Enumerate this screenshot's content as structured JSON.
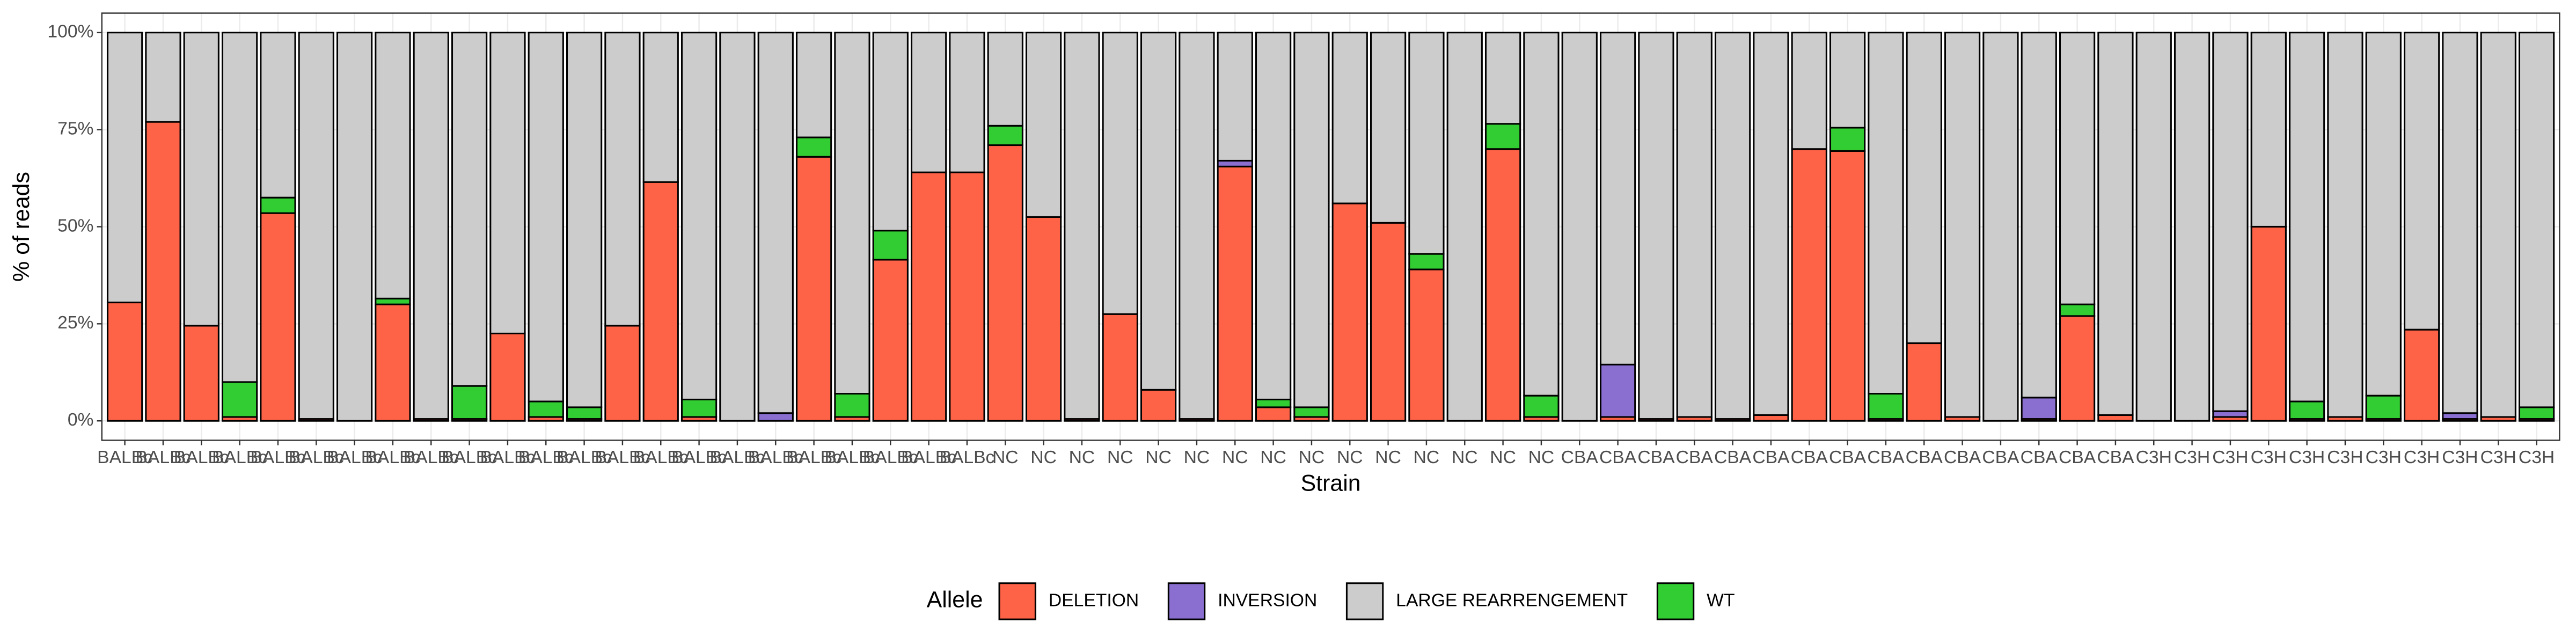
{
  "chart_data": {
    "type": "stacked_bar",
    "x_label": "Strain",
    "y_label": "% of reads",
    "legend_title": "Allele",
    "categories": [
      "BALBc",
      "BALBc",
      "BALBc",
      "BALBc",
      "BALBc",
      "BALBc",
      "BALBc",
      "BALBc",
      "BALBc",
      "BALBc",
      "BALBc",
      "BALBc",
      "BALBc",
      "BALBc",
      "BALBc",
      "BALBc",
      "BALBc",
      "BALBc",
      "BALBc",
      "BALBc",
      "BALBc",
      "BALBc",
      "BALBc",
      "NC",
      "NC",
      "NC",
      "NC",
      "NC",
      "NC",
      "NC",
      "NC",
      "NC",
      "NC",
      "NC",
      "NC",
      "NC",
      "NC",
      "NC",
      "CBA",
      "CBA",
      "CBA",
      "CBA",
      "CBA",
      "CBA",
      "CBA",
      "CBA",
      "CBA",
      "CBA",
      "CBA",
      "CBA",
      "CBA",
      "CBA",
      "CBA",
      "C3H",
      "C3H",
      "C3H",
      "C3H",
      "C3H",
      "C3H",
      "C3H",
      "C3H",
      "C3H",
      "C3H",
      "C3H"
    ],
    "series": [
      {
        "name": "DELETION",
        "color": "#ff6347",
        "values": [
          30.5,
          77,
          24.5,
          1,
          53.5,
          0.5,
          0,
          30,
          0.5,
          0.5,
          22.5,
          1,
          0.5,
          24.5,
          61.5,
          1,
          0,
          0,
          68,
          1,
          41.5,
          64,
          64,
          71,
          52.5,
          0.5,
          27.5,
          8,
          0.5,
          65.5,
          3.5,
          1,
          56,
          51,
          39,
          0,
          70,
          1,
          0,
          1,
          0.5,
          1,
          0.5,
          1.5,
          70,
          69.5,
          0.5,
          20,
          1,
          0,
          0.5,
          27,
          1.5,
          0,
          0,
          1,
          50,
          0.5,
          1,
          0.5,
          23.5,
          0.5,
          1,
          0.5
        ]
      },
      {
        "name": "INVERSION",
        "color": "#8a6fd1",
        "values": [
          0,
          0,
          0,
          0,
          0,
          0,
          0,
          0,
          0,
          0,
          0,
          0,
          0,
          0,
          0,
          0,
          0,
          2,
          0,
          0,
          0,
          0,
          0,
          0,
          0,
          0,
          0,
          0,
          0,
          1.5,
          0,
          0,
          0,
          0,
          0,
          0,
          0,
          0,
          0,
          13.5,
          0,
          0,
          0,
          0,
          0,
          0,
          0,
          0,
          0,
          0,
          5.5,
          0,
          0,
          0,
          0,
          1.5,
          0,
          0,
          0,
          0,
          0,
          1.5,
          0,
          0
        ]
      },
      {
        "name": "LARGE REARRENGEMENT",
        "color": "#cccccc",
        "values": [
          69.5,
          23,
          75.5,
          90,
          42.5,
          99.5,
          100,
          68.5,
          99.5,
          91,
          77.5,
          95,
          96.5,
          75.5,
          38.5,
          94.5,
          100,
          98,
          27,
          93,
          51,
          36,
          36,
          24,
          47.5,
          99.5,
          72.5,
          92,
          99.5,
          33,
          94.5,
          96.5,
          44,
          49,
          57,
          100,
          23.5,
          93.5,
          100,
          85.5,
          99.5,
          99,
          99.5,
          98.5,
          30,
          24.5,
          93,
          80,
          99,
          100,
          94,
          70,
          98.5,
          100,
          100,
          97.5,
          50,
          95,
          99,
          93.5,
          76.5,
          98,
          99,
          96.5
        ]
      },
      {
        "name": "WT",
        "color": "#32cd32",
        "values": [
          0,
          0,
          0,
          9,
          4,
          0,
          0,
          1.5,
          0,
          8.5,
          0,
          4,
          3,
          0,
          0,
          4.5,
          0,
          0,
          5,
          6,
          7.5,
          0,
          0,
          5,
          0,
          0,
          0,
          0,
          0,
          0,
          2,
          2.5,
          0,
          0,
          4,
          0,
          6.5,
          5.5,
          0,
          0,
          0,
          0,
          0,
          0,
          0,
          6,
          6.5,
          0,
          0,
          0,
          0,
          3,
          0,
          0,
          0,
          0,
          0,
          4.5,
          0,
          6,
          0,
          0,
          0,
          3
        ]
      }
    ],
    "stack_order": [
      "DELETION",
      "INVERSION",
      "WT",
      "LARGE REARRENGEMENT"
    ],
    "ylim": [
      -5,
      105
    ],
    "yticks": [
      {
        "value": 0,
        "label": "0%"
      },
      {
        "value": 25,
        "label": "25%"
      },
      {
        "value": 50,
        "label": "50%"
      },
      {
        "value": 75,
        "label": "75%"
      },
      {
        "value": 100,
        "label": "100%"
      }
    ],
    "grid": true,
    "legend_position": "bottom"
  }
}
